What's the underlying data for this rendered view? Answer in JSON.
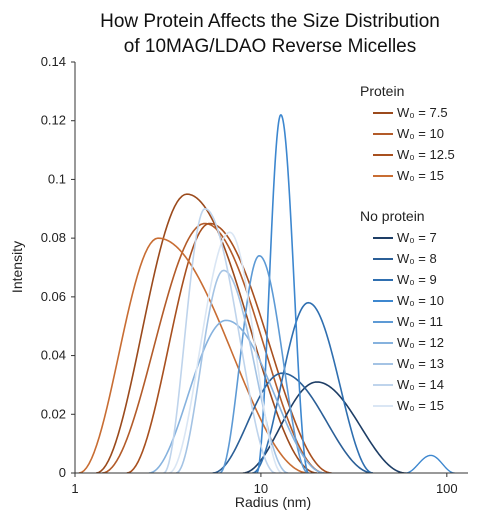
{
  "chart_data": {
    "type": "line",
    "title_line1": "How Protein Affects the Size Distribution",
    "title_line2": "of 10MAG/LDAO Reverse Micelles",
    "xlabel": "Radius (nm)",
    "ylabel": "Intensity",
    "x_scale": "log",
    "xlim": [
      1,
      130
    ],
    "ylim": [
      0,
      0.14
    ],
    "x_ticks": [
      1,
      10,
      100
    ],
    "x_tick_labels": [
      "1",
      "10",
      "100"
    ],
    "y_ticks": [
      0,
      0.02,
      0.04,
      0.06,
      0.08,
      0.1,
      0.12,
      0.14
    ],
    "y_tick_labels": [
      "0",
      "0.02",
      "0.04",
      "0.06",
      "0.08",
      "0.1",
      "0.12",
      "0.14"
    ],
    "grid": false,
    "legend_position": "right",
    "legend_groups": [
      {
        "heading": "Protein",
        "series": [
          {
            "name": "W₀ = 7.5",
            "color": "#9b4a1c",
            "peak_x": 4.0,
            "peak_y": 0.095,
            "x_start": 1.3,
            "x_end": 20
          },
          {
            "name": "W₀ = 10",
            "color": "#b35b29",
            "peak_x": 5.0,
            "peak_y": 0.085,
            "x_start": 1.4,
            "x_end": 22
          },
          {
            "name": "W₀ = 12.5",
            "color": "#a8501f",
            "peak_x": 5.3,
            "peak_y": 0.085,
            "x_start": 1.9,
            "x_end": 24
          },
          {
            "name": "W₀ = 15",
            "color": "#c86d33",
            "peak_x": 2.8,
            "peak_y": 0.08,
            "x_start": 1.05,
            "x_end": 18
          }
        ]
      },
      {
        "heading": "No protein",
        "series": [
          {
            "name": "W₀ = 7",
            "color": "#1e3e66",
            "peak_x": 20,
            "peak_y": 0.031,
            "x_start": 8,
            "x_end": 60
          },
          {
            "name": "W₀ = 8",
            "color": "#2b5f97",
            "peak_x": 13,
            "peak_y": 0.034,
            "x_start": 5.5,
            "x_end": 40
          },
          {
            "name": "W₀ = 9",
            "color": "#2f6fb0",
            "peak_x": 18,
            "peak_y": 0.058,
            "x_start": 9,
            "x_end": 40
          },
          {
            "name": "W₀ = 10",
            "color": "#3d87cf",
            "peak_x": 12.8,
            "peak_y": 0.122,
            "x_start": 9.5,
            "x_end": 18
          },
          {
            "name": "W₀ = 11",
            "color": "#5d9ad5",
            "peak_x": 9.8,
            "peak_y": 0.074,
            "x_start": 6,
            "x_end": 18
          },
          {
            "name": "W₀ = 12",
            "color": "#86b2de",
            "peak_x": 6.5,
            "peak_y": 0.052,
            "x_start": 2.5,
            "x_end": 22
          },
          {
            "name": "W₀ = 13",
            "color": "#a4c3e4",
            "peak_x": 6.3,
            "peak_y": 0.069,
            "x_start": 3.5,
            "x_end": 14
          },
          {
            "name": "W₀ = 14",
            "color": "#bfd4ec",
            "peak_x": 5.0,
            "peak_y": 0.09,
            "x_start": 3,
            "x_end": 12
          },
          {
            "name": "W₀ = 15",
            "color": "#dae6f4",
            "peak_x": 6.8,
            "peak_y": 0.082,
            "x_start": 3.2,
            "x_end": 13
          }
        ]
      }
    ]
  }
}
